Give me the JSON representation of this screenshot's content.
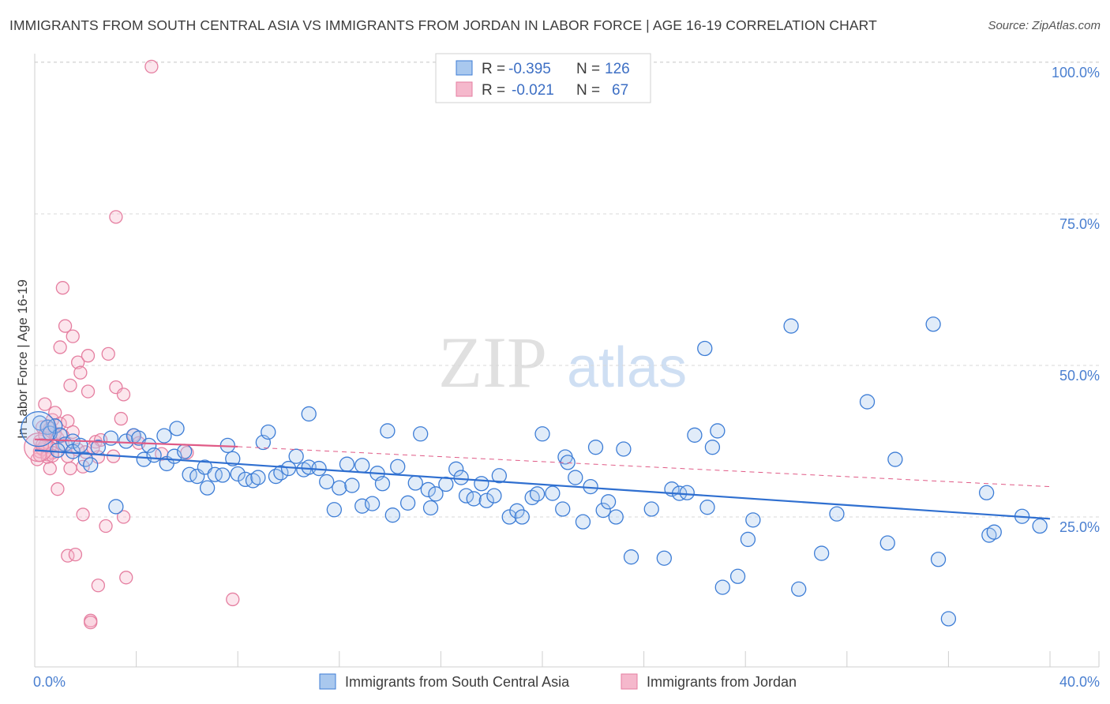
{
  "title": "IMMIGRANTS FROM SOUTH CENTRAL ASIA VS IMMIGRANTS FROM JORDAN IN LABOR FORCE | AGE 16-19 CORRELATION CHART",
  "source": "Source: ZipAtlas.com",
  "watermark": {
    "zip": "ZIP",
    "atlas": "atlas"
  },
  "legend_box": {
    "rows": [
      {
        "r_label": "R =",
        "r_value": "-0.395",
        "n_label": "N =",
        "n_value": "126"
      },
      {
        "r_label": "R =",
        "r_value": "-0.021",
        "n_label": "N =",
        "n_value": "67"
      }
    ]
  },
  "colors": {
    "blue_fill": "#a9c8ee",
    "blue_stroke": "#3d7dd6",
    "blue_line": "#2f6fd0",
    "pink_fill": "#f5b8cc",
    "pink_stroke": "#e57ea0",
    "pink_line": "#e05a86",
    "tick_text": "#4a7fd0",
    "grid": "#d8d8d8"
  },
  "chart_data": {
    "type": "scatter",
    "title": "IMMIGRANTS FROM SOUTH CENTRAL ASIA VS IMMIGRANTS FROM JORDAN IN LABOR FORCE | AGE 16-19 CORRELATION CHART",
    "xlabel": "",
    "ylabel": "In Labor Force | Age 16-19",
    "xlim": [
      0,
      40
    ],
    "ylim": [
      0,
      102
    ],
    "x_tick_labels": [
      "0.0%",
      "40.0%"
    ],
    "y_ticks": [
      25,
      50,
      75,
      100
    ],
    "y_tick_labels": [
      "25.0%",
      "50.0%",
      "75.0%",
      "100.0%"
    ],
    "grid": true,
    "legend": "top-center",
    "series": [
      {
        "name": "Immigrants from South Central Asia",
        "color": "#3d7dd6",
        "R": -0.395,
        "N": 126,
        "trend": {
          "x": [
            0,
            40
          ],
          "y": [
            36.0,
            24.7
          ]
        },
        "points": [
          [
            0.2,
            40.5
          ],
          [
            0.5,
            39.8
          ],
          [
            0.6,
            38.8
          ],
          [
            0.8,
            40.0
          ],
          [
            1.0,
            38.5
          ],
          [
            1.2,
            37.0
          ],
          [
            1.5,
            37.5
          ],
          [
            1.5,
            35.8
          ],
          [
            1.8,
            36.8
          ],
          [
            2.0,
            34.5
          ],
          [
            2.2,
            33.6
          ],
          [
            2.5,
            36.5
          ],
          [
            3.0,
            38.0
          ],
          [
            3.2,
            26.7
          ],
          [
            3.6,
            37.5
          ],
          [
            3.9,
            38.4
          ],
          [
            4.1,
            38.0
          ],
          [
            4.3,
            34.5
          ],
          [
            4.5,
            36.8
          ],
          [
            4.7,
            35.2
          ],
          [
            5.1,
            38.4
          ],
          [
            5.2,
            33.8
          ],
          [
            5.5,
            35.0
          ],
          [
            5.6,
            39.6
          ],
          [
            5.9,
            35.8
          ],
          [
            6.1,
            32.0
          ],
          [
            6.4,
            31.7
          ],
          [
            6.7,
            33.2
          ],
          [
            6.8,
            29.8
          ],
          [
            7.1,
            32.0
          ],
          [
            7.4,
            31.9
          ],
          [
            7.6,
            36.8
          ],
          [
            7.8,
            34.6
          ],
          [
            8.0,
            32.1
          ],
          [
            8.3,
            31.2
          ],
          [
            8.6,
            31.0
          ],
          [
            8.8,
            31.5
          ],
          [
            9.0,
            37.3
          ],
          [
            9.2,
            39.0
          ],
          [
            9.5,
            31.7
          ],
          [
            9.7,
            32.3
          ],
          [
            10.0,
            33.0
          ],
          [
            10.3,
            35.0
          ],
          [
            10.6,
            32.8
          ],
          [
            10.8,
            33.2
          ],
          [
            10.8,
            42.0
          ],
          [
            11.2,
            33.0
          ],
          [
            11.5,
            30.8
          ],
          [
            11.8,
            26.2
          ],
          [
            12.0,
            29.8
          ],
          [
            12.3,
            33.7
          ],
          [
            12.5,
            30.2
          ],
          [
            12.9,
            26.8
          ],
          [
            12.9,
            33.5
          ],
          [
            13.3,
            27.2
          ],
          [
            13.5,
            32.2
          ],
          [
            13.7,
            30.5
          ],
          [
            13.9,
            39.2
          ],
          [
            14.1,
            25.3
          ],
          [
            14.3,
            33.3
          ],
          [
            14.7,
            27.3
          ],
          [
            15.0,
            30.6
          ],
          [
            15.2,
            38.7
          ],
          [
            15.5,
            29.5
          ],
          [
            15.6,
            26.5
          ],
          [
            15.8,
            28.8
          ],
          [
            16.2,
            30.4
          ],
          [
            16.6,
            32.9
          ],
          [
            16.8,
            31.5
          ],
          [
            17.0,
            28.5
          ],
          [
            17.3,
            28.0
          ],
          [
            17.6,
            30.5
          ],
          [
            17.8,
            27.7
          ],
          [
            18.1,
            28.5
          ],
          [
            18.3,
            31.8
          ],
          [
            18.7,
            25.0
          ],
          [
            19.0,
            26.0
          ],
          [
            19.2,
            25.0
          ],
          [
            19.6,
            28.2
          ],
          [
            19.8,
            28.8
          ],
          [
            20.0,
            38.7
          ],
          [
            20.4,
            28.9
          ],
          [
            20.8,
            26.3
          ],
          [
            20.9,
            34.9
          ],
          [
            21.0,
            34.0
          ],
          [
            21.3,
            31.5
          ],
          [
            21.6,
            24.2
          ],
          [
            21.9,
            30.0
          ],
          [
            22.1,
            36.5
          ],
          [
            22.4,
            26.1
          ],
          [
            22.6,
            27.5
          ],
          [
            22.9,
            25.0
          ],
          [
            23.2,
            36.2
          ],
          [
            23.5,
            18.4
          ],
          [
            24.3,
            26.3
          ],
          [
            24.8,
            18.2
          ],
          [
            25.1,
            29.6
          ],
          [
            25.4,
            28.9
          ],
          [
            25.7,
            29.0
          ],
          [
            26.0,
            38.5
          ],
          [
            26.5,
            26.6
          ],
          [
            26.7,
            36.5
          ],
          [
            26.9,
            39.2
          ],
          [
            26.4,
            52.8
          ],
          [
            27.1,
            13.4
          ],
          [
            27.7,
            15.2
          ],
          [
            28.1,
            21.3
          ],
          [
            28.3,
            24.5
          ],
          [
            29.8,
            56.5
          ],
          [
            30.1,
            13.1
          ],
          [
            31.0,
            19.0
          ],
          [
            31.6,
            25.5
          ],
          [
            32.8,
            44.0
          ],
          [
            33.6,
            20.7
          ],
          [
            33.9,
            34.5
          ],
          [
            35.4,
            56.8
          ],
          [
            35.6,
            18.0
          ],
          [
            36.0,
            8.2
          ],
          [
            37.5,
            29.0
          ],
          [
            37.6,
            22.0
          ],
          [
            37.8,
            22.5
          ],
          [
            38.9,
            25.1
          ],
          [
            39.6,
            23.5
          ],
          [
            0.9,
            36.0
          ]
        ]
      },
      {
        "name": "Immigrants from Jordan",
        "color": "#e57ea0",
        "R": -0.021,
        "N": 67,
        "trend_solid": {
          "x": [
            0,
            8.0
          ],
          "y": [
            37.8,
            36.6
          ]
        },
        "trend_dashed": {
          "x": [
            8.0,
            40
          ],
          "y": [
            36.6,
            30.0
          ]
        },
        "points": [
          [
            0.1,
            34.5
          ],
          [
            0.2,
            35.8
          ],
          [
            0.2,
            37.5
          ],
          [
            0.3,
            36.2
          ],
          [
            0.3,
            39.8
          ],
          [
            0.4,
            36.8
          ],
          [
            0.4,
            38.5
          ],
          [
            0.5,
            35.3
          ],
          [
            0.5,
            40.0
          ],
          [
            0.6,
            33.0
          ],
          [
            0.6,
            36.5
          ],
          [
            0.7,
            35.6
          ],
          [
            0.7,
            41.0
          ],
          [
            0.8,
            38.8
          ],
          [
            0.8,
            42.2
          ],
          [
            0.9,
            29.6
          ],
          [
            0.9,
            38.0
          ],
          [
            1.0,
            53.0
          ],
          [
            1.0,
            40.4
          ],
          [
            1.1,
            62.8
          ],
          [
            1.1,
            37.0
          ],
          [
            1.2,
            56.5
          ],
          [
            1.3,
            35.0
          ],
          [
            1.3,
            40.8
          ],
          [
            1.3,
            18.6
          ],
          [
            1.4,
            33.0
          ],
          [
            1.4,
            46.7
          ],
          [
            1.5,
            54.8
          ],
          [
            1.5,
            39.0
          ],
          [
            1.6,
            18.8
          ],
          [
            1.7,
            36.1
          ],
          [
            1.7,
            50.5
          ],
          [
            1.8,
            48.8
          ],
          [
            1.9,
            33.3
          ],
          [
            1.9,
            25.4
          ],
          [
            2.0,
            35.7
          ],
          [
            2.1,
            51.6
          ],
          [
            2.1,
            45.7
          ],
          [
            2.2,
            7.9
          ],
          [
            2.2,
            7.6
          ],
          [
            2.4,
            37.4
          ],
          [
            2.5,
            34.9
          ],
          [
            2.5,
            13.7
          ],
          [
            2.6,
            37.7
          ],
          [
            2.8,
            23.5
          ],
          [
            2.9,
            51.9
          ],
          [
            3.1,
            35.0
          ],
          [
            3.2,
            46.4
          ],
          [
            3.2,
            74.5
          ],
          [
            3.4,
            41.2
          ],
          [
            3.5,
            45.2
          ],
          [
            3.5,
            25.0
          ],
          [
            3.6,
            15.0
          ],
          [
            3.9,
            38.5
          ],
          [
            4.1,
            37.2
          ],
          [
            4.6,
            99.3
          ],
          [
            5.0,
            35.4
          ],
          [
            6.0,
            35.6
          ],
          [
            7.8,
            11.4
          ],
          [
            0.3,
            36.9
          ],
          [
            0.5,
            34.9
          ],
          [
            0.6,
            39.6
          ],
          [
            0.4,
            43.6
          ],
          [
            1.1,
            38.4
          ],
          [
            2.3,
            36.4
          ],
          [
            0.2,
            35.2
          ],
          [
            0.7,
            35.1
          ]
        ]
      }
    ]
  },
  "bottom_legend": [
    {
      "label": "Immigrants from South Central Asia"
    },
    {
      "label": "Immigrants from Jordan"
    }
  ]
}
